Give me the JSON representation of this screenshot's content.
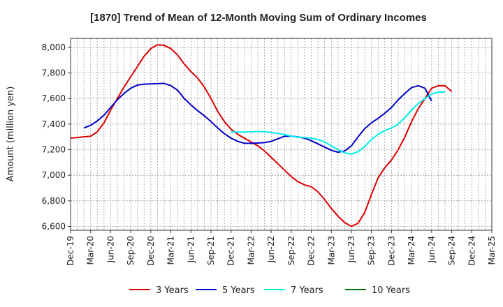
{
  "chart_data": {
    "type": "line",
    "title": "[1870]  Trend of Mean of 12-Month Moving Sum of Ordinary Incomes",
    "xlabel": "",
    "ylabel": "Amount (million yen)",
    "ylim": [
      6570,
      8070
    ],
    "yticks": [
      6600,
      6800,
      7000,
      7200,
      7400,
      7600,
      7800,
      8000
    ],
    "ytick_labels": [
      "6,600",
      "6,800",
      "7,000",
      "7,200",
      "7,400",
      "7,600",
      "7,800",
      "8,000"
    ],
    "xlim": [
      0,
      63
    ],
    "xtick_labels": [
      "Dec-19",
      "Mar-20",
      "Jun-20",
      "Sep-20",
      "Dec-20",
      "Mar-21",
      "Jun-21",
      "Sep-21",
      "Dec-21",
      "Mar-22",
      "Jun-22",
      "Sep-22",
      "Dec-22",
      "Mar-23",
      "Jun-23",
      "Sep-23",
      "Dec-23",
      "Mar-24",
      "Jun-24",
      "Sep-24",
      "Dec-24",
      "Mar-25"
    ],
    "grid": true,
    "legend_position": "bottom",
    "series": [
      {
        "name": "3 Years",
        "color": "#dd0000",
        "start": 0,
        "values": [
          7290,
          7295,
          7300,
          7305,
          7340,
          7410,
          7510,
          7600,
          7690,
          7770,
          7850,
          7930,
          7990,
          8020,
          8015,
          7990,
          7940,
          7870,
          7810,
          7760,
          7690,
          7600,
          7500,
          7420,
          7360,
          7320,
          7290,
          7260,
          7230,
          7190,
          7140,
          7090,
          7040,
          6990,
          6950,
          6925,
          6910,
          6870,
          6810,
          6740,
          6680,
          6630,
          6600,
          6625,
          6710,
          6850,
          6980,
          7060,
          7120,
          7200,
          7300,
          7420,
          7520,
          7600,
          7680,
          7700,
          7700,
          7655
        ]
      },
      {
        "name": "5 Years",
        "color": "#0000cc",
        "start": 2,
        "values": [
          7370,
          7390,
          7425,
          7470,
          7530,
          7590,
          7640,
          7680,
          7705,
          7712,
          7714,
          7716,
          7718,
          7700,
          7665,
          7600,
          7550,
          7505,
          7465,
          7420,
          7370,
          7325,
          7290,
          7265,
          7250,
          7250,
          7252,
          7255,
          7265,
          7285,
          7305,
          7305,
          7300,
          7290,
          7270,
          7245,
          7220,
          7195,
          7180,
          7190,
          7230,
          7300,
          7365,
          7410,
          7445,
          7485,
          7530,
          7590,
          7640,
          7685,
          7700,
          7680,
          7580
        ]
      },
      {
        "name": "7 Years",
        "color": "#00eeee",
        "start": 24,
        "values": [
          7340,
          7338,
          7338,
          7340,
          7342,
          7340,
          7335,
          7327,
          7318,
          7305,
          7298,
          7295,
          7290,
          7280,
          7260,
          7230,
          7200,
          7175,
          7165,
          7185,
          7225,
          7280,
          7320,
          7350,
          7370,
          7400,
          7450,
          7510,
          7560,
          7600,
          7635,
          7650,
          7650
        ]
      },
      {
        "name": "10 Years",
        "color": "#007700",
        "start": 0,
        "values": []
      }
    ]
  }
}
